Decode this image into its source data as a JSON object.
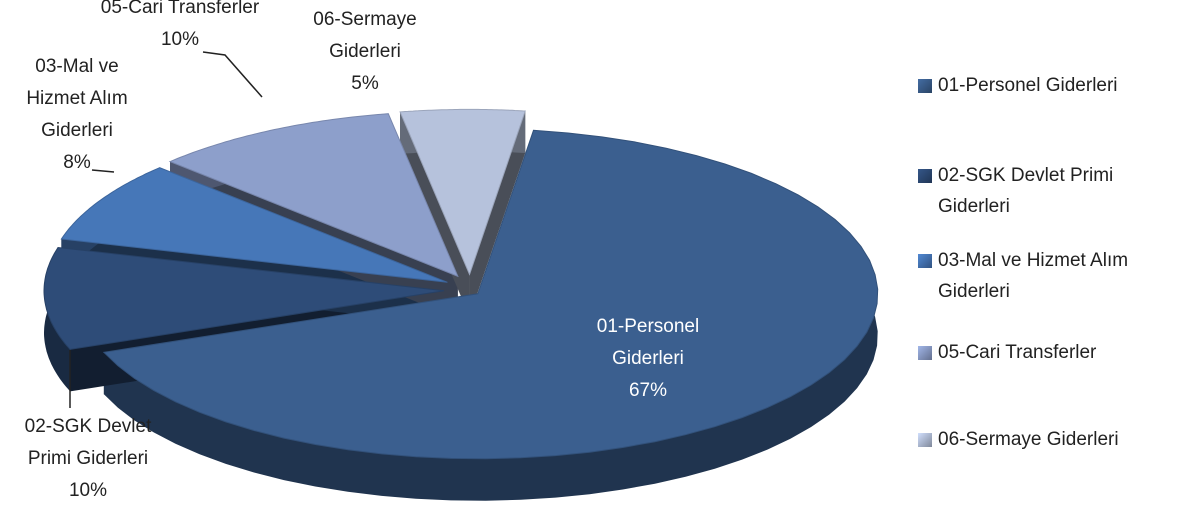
{
  "chart_data": {
    "type": "pie",
    "categories": [
      "01-Personel Giderleri",
      "02-SGK Devlet Primi Giderleri",
      "03-Mal ve Hizmet Alım Giderleri",
      "05-Cari Transferler",
      "06-Sermaye Giderleri"
    ],
    "values": [
      67,
      10,
      8,
      10,
      5
    ],
    "value_labels": [
      "67%",
      "10%",
      "8%",
      "10%",
      "5%"
    ],
    "colors": [
      "#3b5f8f",
      "#2e4c78",
      "#4677b8",
      "#8d9fcb",
      "#b6c2dc"
    ],
    "legend": "right"
  }
}
